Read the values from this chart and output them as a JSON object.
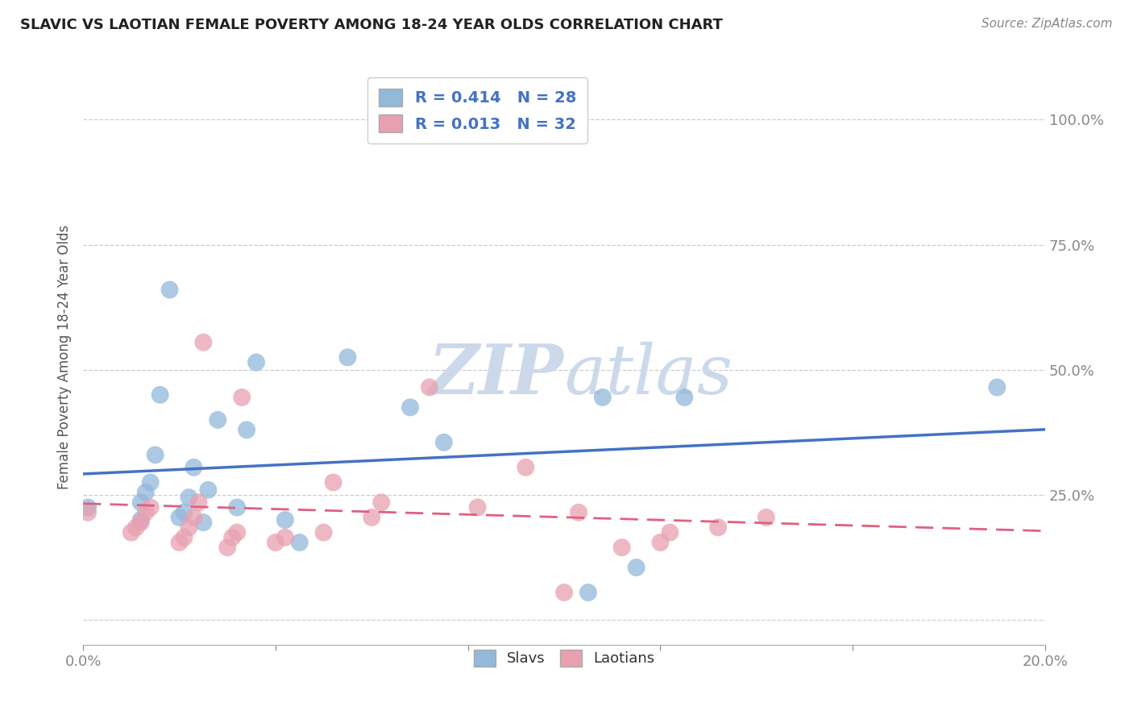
{
  "title": "SLAVIC VS LAOTIAN FEMALE POVERTY AMONG 18-24 YEAR OLDS CORRELATION CHART",
  "source": "Source: ZipAtlas.com",
  "ylabel_text": "Female Poverty Among 18-24 Year Olds",
  "xlim": [
    0.0,
    0.2
  ],
  "ylim": [
    -0.05,
    1.1
  ],
  "x_ticks": [
    0.0,
    0.04,
    0.08,
    0.12,
    0.16,
    0.2
  ],
  "x_tick_labels": [
    "0.0%",
    "",
    "",
    "",
    "",
    "20.0%"
  ],
  "y_ticks": [
    0.0,
    0.25,
    0.5,
    0.75,
    1.0
  ],
  "y_tick_labels": [
    "",
    "25.0%",
    "50.0%",
    "75.0%",
    "100.0%"
  ],
  "slavs_color": "#92b8da",
  "laotians_color": "#e8a0b0",
  "slavs_line_color": "#4472c4",
  "laotians_line_color": "#e06080",
  "R_slavs": 0.414,
  "N_slavs": 28,
  "R_laotians": 0.013,
  "N_laotians": 32,
  "slavs_x": [
    0.001,
    0.012,
    0.012,
    0.013,
    0.014,
    0.015,
    0.016,
    0.018,
    0.02,
    0.021,
    0.022,
    0.023,
    0.025,
    0.026,
    0.028,
    0.032,
    0.034,
    0.036,
    0.042,
    0.045,
    0.055,
    0.068,
    0.075,
    0.105,
    0.108,
    0.115,
    0.125,
    0.19
  ],
  "slavs_y": [
    0.225,
    0.2,
    0.235,
    0.255,
    0.275,
    0.33,
    0.45,
    0.66,
    0.205,
    0.215,
    0.245,
    0.305,
    0.195,
    0.26,
    0.4,
    0.225,
    0.38,
    0.515,
    0.2,
    0.155,
    0.525,
    0.425,
    0.355,
    0.055,
    0.445,
    0.105,
    0.445,
    0.465
  ],
  "laotians_x": [
    0.001,
    0.01,
    0.011,
    0.012,
    0.013,
    0.014,
    0.02,
    0.021,
    0.022,
    0.023,
    0.024,
    0.025,
    0.03,
    0.031,
    0.032,
    0.033,
    0.04,
    0.042,
    0.05,
    0.052,
    0.06,
    0.062,
    0.072,
    0.082,
    0.092,
    0.1,
    0.103,
    0.112,
    0.12,
    0.122,
    0.132,
    0.142
  ],
  "laotians_y": [
    0.215,
    0.175,
    0.185,
    0.195,
    0.215,
    0.225,
    0.155,
    0.165,
    0.185,
    0.205,
    0.235,
    0.555,
    0.145,
    0.165,
    0.175,
    0.445,
    0.155,
    0.165,
    0.175,
    0.275,
    0.205,
    0.235,
    0.465,
    0.225,
    0.305,
    0.055,
    0.215,
    0.145,
    0.155,
    0.175,
    0.185,
    0.205
  ],
  "background_color": "#ffffff",
  "watermark_color": "#ccd9ea",
  "grid_color": "#cccccc",
  "grid_style": "--"
}
